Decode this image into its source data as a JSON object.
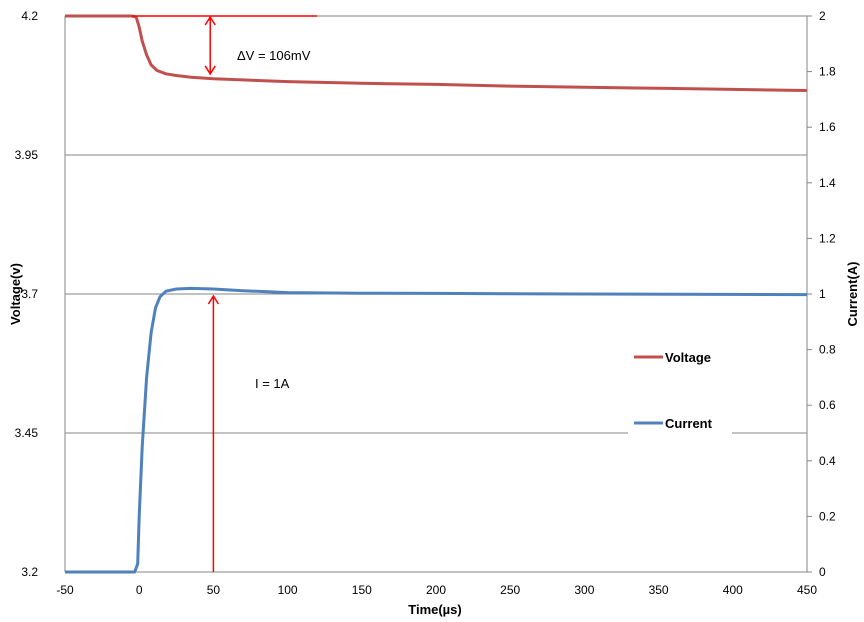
{
  "chart_data": {
    "type": "line",
    "xlabel": "Time(µs)",
    "ylabel_left": "Voltage(v)",
    "ylabel_right": "Current(A)",
    "xlim": [
      -50,
      450
    ],
    "ylim_left": [
      3.2,
      4.2
    ],
    "ylim_right": [
      0,
      2
    ],
    "x_ticks": [
      "-50",
      "0",
      "50",
      "100",
      "150",
      "200",
      "250",
      "300",
      "350",
      "400",
      "450"
    ],
    "y_left_ticks": [
      "3.2",
      "3.45",
      "3.7",
      "3.95",
      "4.2"
    ],
    "y_right_ticks": [
      "0",
      "0.2",
      "0.4",
      "0.6",
      "0.8",
      "1",
      "1.2",
      "1.4",
      "1.6",
      "1.8",
      "2"
    ],
    "grid": "horizontal",
    "legend_position": "lower-right",
    "series": [
      {
        "name": "Voltage",
        "axis": "left",
        "color": "#c0504d",
        "points": [
          [
            -50,
            4.2
          ],
          [
            -5,
            4.2
          ],
          [
            -2,
            4.198
          ],
          [
            0,
            4.18
          ],
          [
            2,
            4.155
          ],
          [
            5,
            4.13
          ],
          [
            8,
            4.112
          ],
          [
            12,
            4.102
          ],
          [
            18,
            4.096
          ],
          [
            25,
            4.093
          ],
          [
            35,
            4.09
          ],
          [
            50,
            4.087
          ],
          [
            100,
            4.082
          ],
          [
            150,
            4.079
          ],
          [
            200,
            4.077
          ],
          [
            250,
            4.074
          ],
          [
            300,
            4.072
          ],
          [
            350,
            4.07
          ],
          [
            400,
            4.068
          ],
          [
            450,
            4.066
          ]
        ]
      },
      {
        "name": "Current",
        "axis": "right",
        "color": "#4f81bd",
        "points": [
          [
            -50,
            0.0
          ],
          [
            -3,
            0.0
          ],
          [
            -1,
            0.03
          ],
          [
            0,
            0.2
          ],
          [
            2,
            0.45
          ],
          [
            5,
            0.7
          ],
          [
            8,
            0.86
          ],
          [
            11,
            0.95
          ],
          [
            14,
            0.99
          ],
          [
            18,
            1.01
          ],
          [
            25,
            1.018
          ],
          [
            35,
            1.02
          ],
          [
            50,
            1.018
          ],
          [
            70,
            1.012
          ],
          [
            100,
            1.005
          ],
          [
            150,
            1.003
          ],
          [
            200,
            1.002
          ],
          [
            300,
            1.0
          ],
          [
            450,
            0.998
          ]
        ]
      }
    ],
    "annotations": {
      "delta_v_label": "ΔV = 106mV",
      "current_label": "I = 1A",
      "annotation_color": "#ff0000"
    }
  }
}
